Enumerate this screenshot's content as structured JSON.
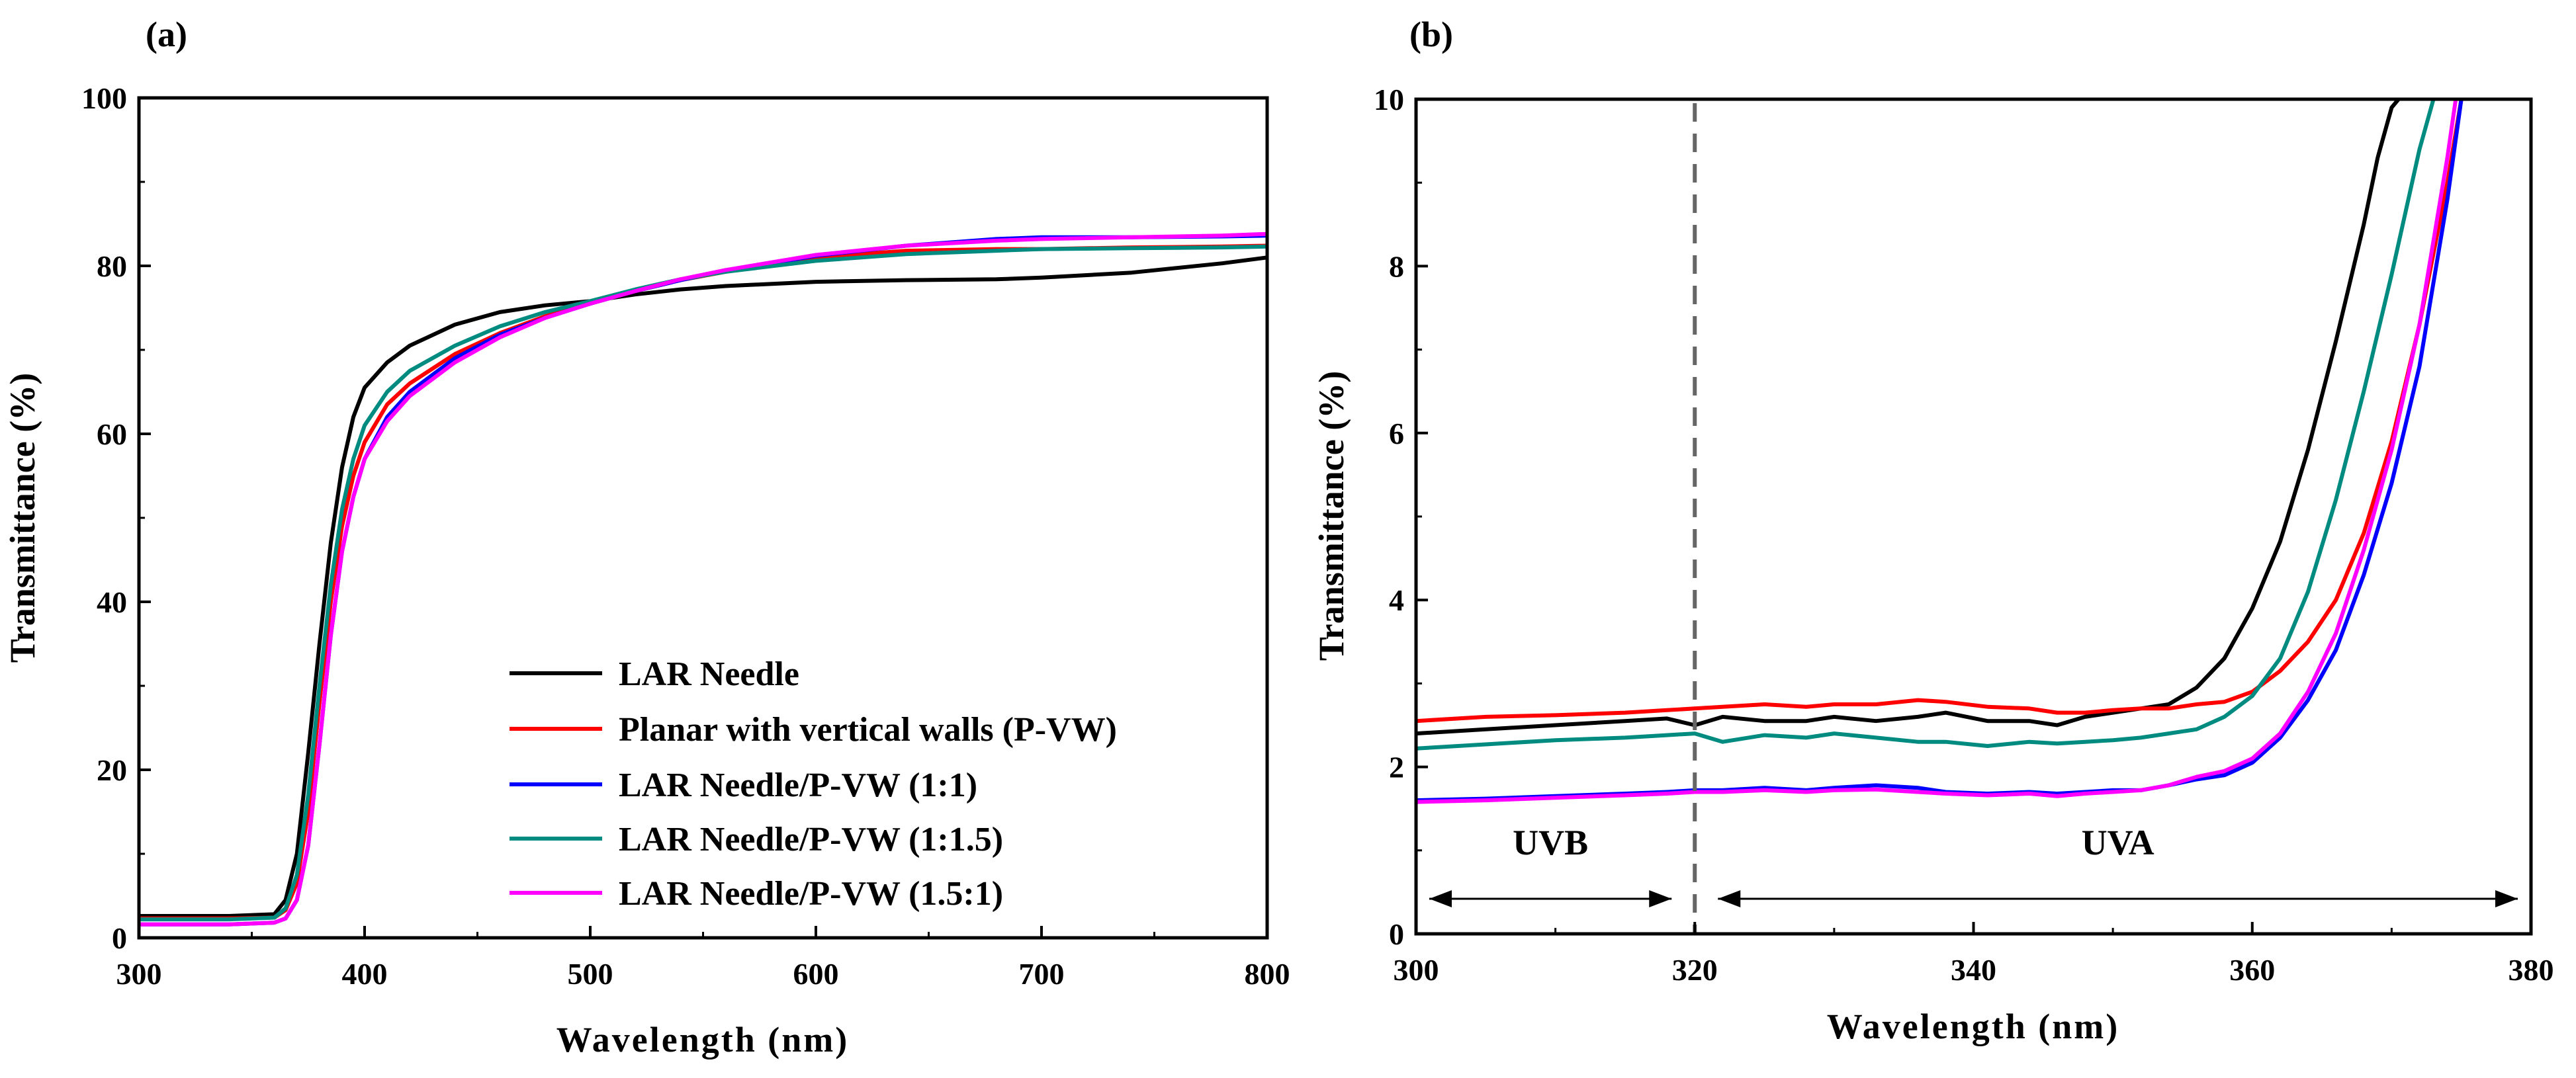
{
  "chart_data": [
    {
      "panel_label": "(a)",
      "type": "line",
      "xlabel": "Wavelength (nm)",
      "ylabel": "Transmittance (%)",
      "xlim": [
        300,
        800
      ],
      "ylim": [
        0,
        100
      ],
      "xticks": [
        "300",
        "400",
        "500",
        "600",
        "700",
        "800"
      ],
      "yticks": [
        "0",
        "20",
        "40",
        "60",
        "80",
        "100"
      ],
      "legend_position": "bottom-right",
      "series": [
        {
          "name": "LAR Needle",
          "color": "#000000",
          "x": [
            300,
            340,
            360,
            365,
            370,
            375,
            380,
            385,
            390,
            395,
            400,
            410,
            420,
            440,
            460,
            480,
            500,
            520,
            540,
            560,
            600,
            640,
            680,
            700,
            740,
            780,
            800
          ],
          "y": [
            2.6,
            2.6,
            2.8,
            4.5,
            10,
            22,
            35,
            47,
            56,
            62,
            65.5,
            68.5,
            70.5,
            73,
            74.5,
            75.3,
            75.8,
            76.6,
            77.2,
            77.6,
            78.1,
            78.3,
            78.4,
            78.6,
            79.2,
            80.3,
            81
          ]
        },
        {
          "name": "Planar with vertical walls (P-VW)",
          "color": "#ff0000",
          "x": [
            300,
            340,
            360,
            365,
            370,
            375,
            380,
            385,
            390,
            395,
            400,
            410,
            420,
            440,
            460,
            480,
            500,
            520,
            540,
            560,
            600,
            640,
            680,
            700,
            740,
            780,
            800
          ],
          "y": [
            2.3,
            2.3,
            2.4,
            3.3,
            6.5,
            15,
            28,
            40,
            49,
            55,
            59,
            63.5,
            66,
            69.5,
            72,
            74,
            75.5,
            77,
            78.3,
            79.3,
            81,
            81.8,
            82,
            82,
            82.2,
            82.3,
            82.4
          ]
        },
        {
          "name": "LAR Needle/P-VW (1:1)",
          "color": "#0000ff",
          "x": [
            300,
            340,
            360,
            365,
            370,
            375,
            380,
            385,
            390,
            395,
            400,
            410,
            420,
            440,
            460,
            480,
            500,
            520,
            540,
            560,
            600,
            640,
            680,
            700,
            740,
            780,
            800
          ],
          "y": [
            1.6,
            1.6,
            1.8,
            2.3,
            4.5,
            11,
            23,
            36,
            46,
            52.5,
            57,
            62,
            65,
            69,
            71.8,
            73.8,
            75.5,
            77,
            78.3,
            79.4,
            81.2,
            82.4,
            83.2,
            83.4,
            83.4,
            83.5,
            83.6
          ]
        },
        {
          "name": "LAR Needle/P-VW (1:1.5)",
          "color": "#008b80",
          "x": [
            300,
            340,
            360,
            365,
            370,
            375,
            380,
            385,
            390,
            395,
            400,
            410,
            420,
            440,
            460,
            480,
            500,
            520,
            540,
            560,
            600,
            640,
            680,
            700,
            740,
            780,
            800
          ],
          "y": [
            2.2,
            2.2,
            2.4,
            3.5,
            7.5,
            17,
            30,
            42,
            51,
            57,
            61,
            65,
            67.5,
            70.5,
            72.8,
            74.5,
            75.8,
            77.2,
            78.4,
            79.3,
            80.6,
            81.4,
            81.8,
            82,
            82.1,
            82.2,
            82.3
          ]
        },
        {
          "name": "LAR Needle/P-VW (1.5:1)",
          "color": "#ff00ff",
          "x": [
            300,
            340,
            360,
            365,
            370,
            375,
            380,
            385,
            390,
            395,
            400,
            410,
            420,
            440,
            460,
            480,
            500,
            520,
            540,
            560,
            600,
            640,
            680,
            700,
            740,
            780,
            800
          ],
          "y": [
            1.6,
            1.6,
            1.8,
            2.3,
            4.5,
            11,
            23,
            36,
            46,
            52.5,
            57,
            61.5,
            64.5,
            68.5,
            71.5,
            73.8,
            75.5,
            77,
            78.4,
            79.5,
            81.3,
            82.4,
            83,
            83.2,
            83.4,
            83.6,
            83.8
          ]
        }
      ]
    },
    {
      "panel_label": "(b)",
      "type": "line",
      "xlabel": "Wavelength (nm)",
      "ylabel": "Transmittance (%)",
      "xlim": [
        300,
        380
      ],
      "ylim": [
        0,
        10
      ],
      "xticks": [
        "300",
        "320",
        "340",
        "360",
        "380"
      ],
      "yticks": [
        "0",
        "2",
        "4",
        "6",
        "8",
        "10"
      ],
      "divider_x": 320,
      "regions": [
        {
          "label": "UVB",
          "x_start": 300,
          "x_end": 320
        },
        {
          "label": "UVA",
          "x_start": 320,
          "x_end": 380
        }
      ],
      "series": [
        {
          "name": "LAR Needle",
          "color": "#000000",
          "x": [
            300,
            305,
            310,
            315,
            318,
            320,
            322,
            325,
            328,
            330,
            333,
            336,
            338,
            341,
            344,
            346,
            348,
            350,
            352,
            354,
            356,
            358,
            360,
            362,
            364,
            366,
            368,
            369,
            370,
            370.5
          ],
          "y": [
            2.4,
            2.45,
            2.5,
            2.55,
            2.58,
            2.5,
            2.6,
            2.55,
            2.55,
            2.6,
            2.55,
            2.6,
            2.65,
            2.55,
            2.55,
            2.5,
            2.6,
            2.65,
            2.7,
            2.75,
            2.95,
            3.3,
            3.9,
            4.7,
            5.8,
            7.1,
            8.5,
            9.3,
            9.9,
            10
          ]
        },
        {
          "name": "Planar with vertical walls (P-VW)",
          "color": "#ff0000",
          "x": [
            300,
            305,
            310,
            315,
            318,
            320,
            322,
            325,
            328,
            330,
            333,
            336,
            338,
            341,
            344,
            346,
            348,
            350,
            352,
            354,
            356,
            358,
            360,
            362,
            364,
            366,
            368,
            370,
            372,
            374,
            375
          ],
          "y": [
            2.55,
            2.6,
            2.62,
            2.65,
            2.68,
            2.7,
            2.72,
            2.75,
            2.72,
            2.75,
            2.75,
            2.8,
            2.78,
            2.72,
            2.7,
            2.65,
            2.65,
            2.68,
            2.7,
            2.7,
            2.75,
            2.78,
            2.9,
            3.15,
            3.5,
            4,
            4.8,
            5.9,
            7.3,
            9,
            10
          ]
        },
        {
          "name": "LAR Needle/P-VW (1:1)",
          "color": "#0000ff",
          "x": [
            300,
            305,
            310,
            315,
            318,
            320,
            322,
            325,
            328,
            330,
            333,
            336,
            338,
            341,
            344,
            346,
            348,
            350,
            352,
            354,
            356,
            358,
            360,
            362,
            364,
            366,
            368,
            370,
            372,
            374,
            375
          ],
          "y": [
            1.6,
            1.62,
            1.65,
            1.68,
            1.7,
            1.72,
            1.72,
            1.75,
            1.72,
            1.75,
            1.78,
            1.75,
            1.7,
            1.68,
            1.7,
            1.68,
            1.7,
            1.72,
            1.72,
            1.78,
            1.85,
            1.9,
            2.05,
            2.35,
            2.8,
            3.4,
            4.3,
            5.4,
            6.8,
            8.8,
            10
          ]
        },
        {
          "name": "LAR Needle/P-VW (1:1.5)",
          "color": "#008b80",
          "x": [
            300,
            305,
            310,
            315,
            318,
            320,
            322,
            325,
            328,
            330,
            333,
            336,
            338,
            341,
            344,
            346,
            348,
            350,
            352,
            354,
            356,
            358,
            360,
            362,
            364,
            366,
            368,
            370,
            372,
            373
          ],
          "y": [
            2.22,
            2.27,
            2.32,
            2.35,
            2.38,
            2.4,
            2.3,
            2.38,
            2.35,
            2.4,
            2.35,
            2.3,
            2.3,
            2.25,
            2.3,
            2.28,
            2.3,
            2.32,
            2.35,
            2.4,
            2.45,
            2.6,
            2.85,
            3.3,
            4.1,
            5.2,
            6.5,
            7.9,
            9.4,
            10
          ]
        },
        {
          "name": "LAR Needle/P-VW (1.5:1)",
          "color": "#ff00ff",
          "x": [
            300,
            305,
            310,
            315,
            318,
            320,
            322,
            325,
            328,
            330,
            333,
            336,
            338,
            341,
            344,
            346,
            348,
            350,
            352,
            354,
            356,
            358,
            360,
            362,
            364,
            366,
            368,
            370,
            372,
            374,
            374.6
          ],
          "y": [
            1.58,
            1.6,
            1.63,
            1.66,
            1.68,
            1.7,
            1.7,
            1.72,
            1.7,
            1.72,
            1.73,
            1.7,
            1.68,
            1.66,
            1.68,
            1.65,
            1.68,
            1.7,
            1.72,
            1.78,
            1.88,
            1.95,
            2.1,
            2.4,
            2.9,
            3.6,
            4.6,
            5.8,
            7.3,
            9.3,
            10
          ]
        }
      ]
    }
  ]
}
